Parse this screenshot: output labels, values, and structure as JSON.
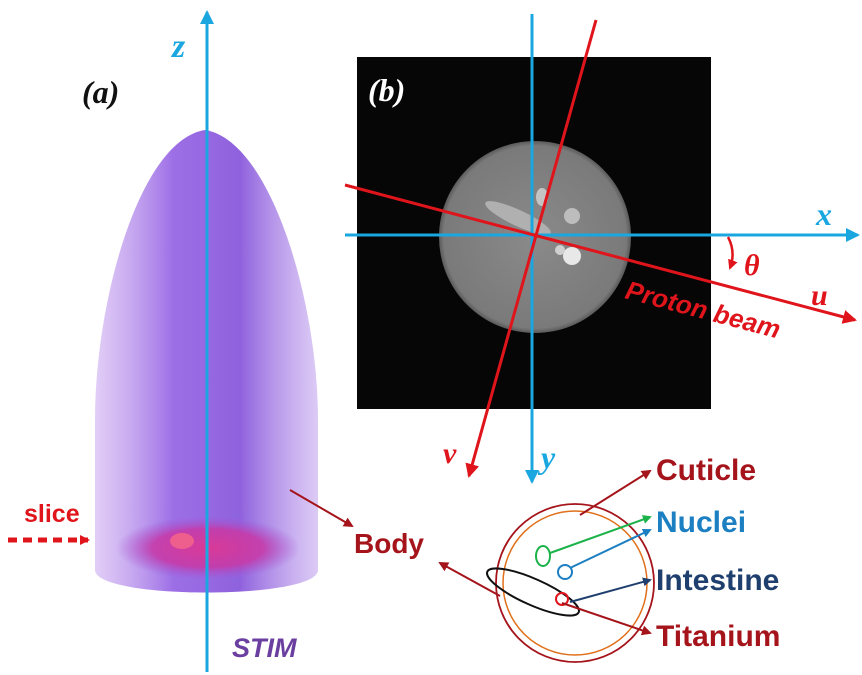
{
  "panel_a": {
    "label": "(a)",
    "axis_z": "z",
    "slice_label": "slice",
    "method_label": "STIM"
  },
  "panel_b": {
    "label": "(b)",
    "axis_x": "x",
    "axis_y": "y",
    "axis_u": "u",
    "axis_v": "v",
    "angle": "θ",
    "beam_label": "Proton beam"
  },
  "legend": {
    "body": "Body",
    "cuticle": "Cuticle",
    "nuclei": "Nuclei",
    "intestine": "Intestine",
    "titanium": "Titanium"
  },
  "colors": {
    "axis_blue": "#1aa7e0",
    "red": "#e0141b",
    "dark_red": "#a5141b",
    "green": "#1cb24a",
    "nuclei_blue": "#1b7fc1",
    "intestine_navy": "#1f3f6e",
    "stim_purple": "#6b3fa0"
  }
}
